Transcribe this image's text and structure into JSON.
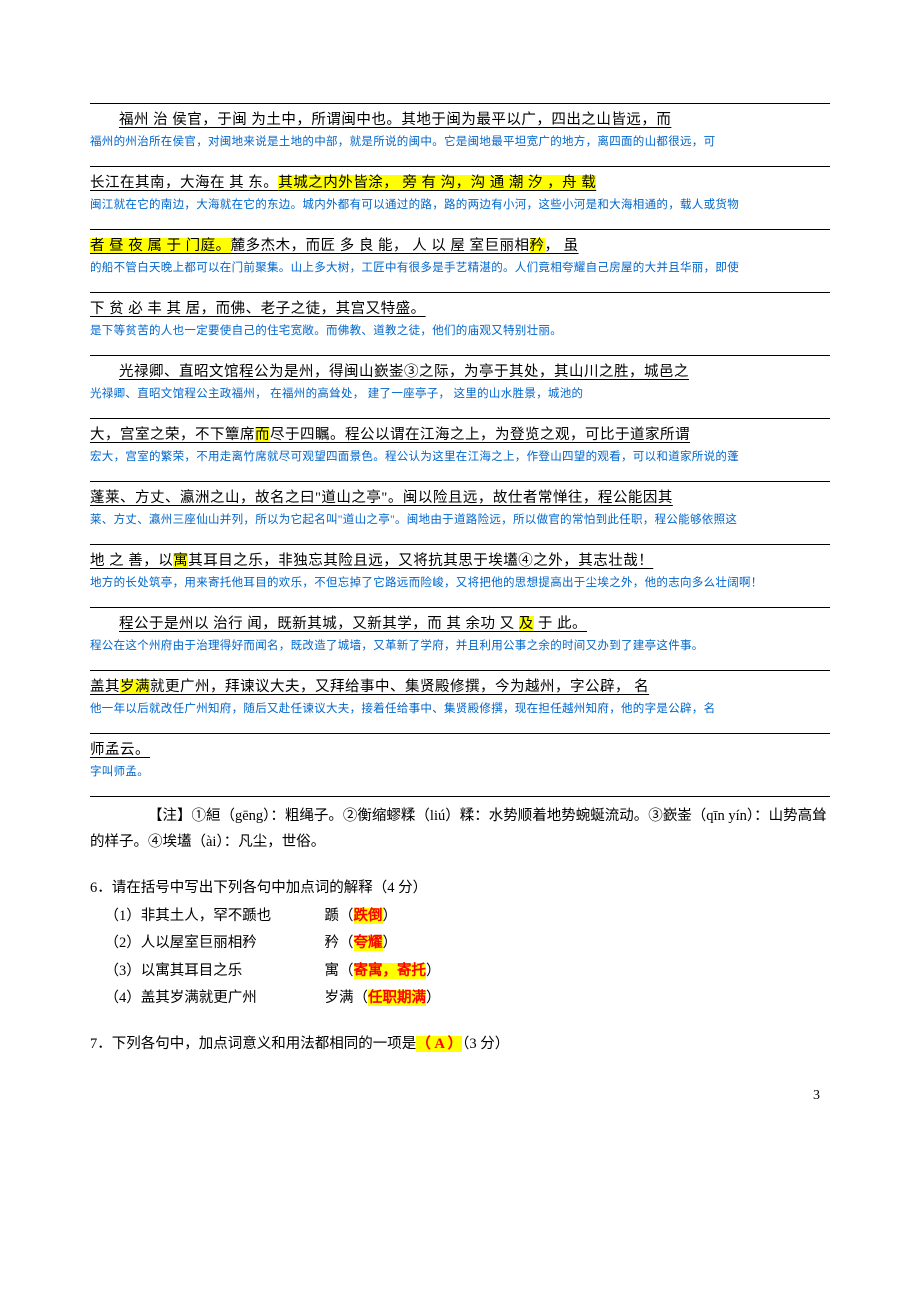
{
  "blocks": [
    {
      "cn": "福州 治 侯官，于闽  为土中，所谓闽中也。其地于闽为最平以广，四出之山皆远，而",
      "cn_indent": true,
      "tr": "福州的州治所在侯官，对闽地来说是土地的中部，就是所说的闽中。它是闽地最平坦宽广的地方，离四面的山都很远，可"
    },
    {
      "cn": "长江在其南，大海在 其 东。<span class='hl'>其城之内外皆涂，  旁 有  沟，沟 通      潮 汐 ，舟    载</span>",
      "tr": "闽江就在它的南边，大海就在它的东边。城内外都有可以通过的路，路的两边有小河，这些小河是和大海相通的，载人或货物"
    },
    {
      "cn": "<span class='hl'>者    昼 夜 属  于 门庭。</span>麓多杰木，而匠 多 良   能，  人  以    屋 室巨丽相<span class='hl'>矜</span>，   虽",
      "tr": "的船不管白天晚上都可以在门前聚集。山上多大树，工匠中有很多是手艺精湛的。人们竟相夸耀自己房屋的大并且华丽，即使"
    },
    {
      "cn": "下     贫    必 丰     其 居，而佛、老子之徒，其宫又特盛。",
      "tr": "是下等贫苦的人也一定要使自己的住宅宽敞。而佛教、道教之徒，他们的庙观又特别壮丽。"
    },
    {
      "cn": "光禄卿、直昭文馆程公为是州，得闽山嶔崟③之际，为亭于其处，其山川之胜，城邑之",
      "cn_indent": true,
      "tr": "光禄卿、直昭文馆程公主政福州，   在福州的高耸处，  建了一座亭子，   这里的山水胜景，城池的"
    },
    {
      "cn": "大，宫室之荣，不下簟席<span class='hl'>而</span>尽于四瞩。程公以谓在江海之上，为登览之观，可比于道家所谓",
      "tr": "宏大，宫室的繁荣，不用走离竹席就尽可观望四面景色。程公认为这里在江海之上，作登山四望的观看，可以和道家所说的蓬"
    },
    {
      "cn": "蓬莱、方丈、瀛洲之山，故名之曰\"道山之亭\"。闽以险且远，故仕者常惮往，程公能因其",
      "tr": "莱、方丈、瀛州三座仙山并列，所以为它起名叫\"道山之亭\"。闽地由于道路险远，所以做官的常怕到此任职，程公能够依照这"
    },
    {
      "cn": "地 之    善，以<span class='hl'>寓</span>其耳目之乐，非独忘其险且远，又将抗其思于埃壒④之外，其志壮哉！",
      "tr": "地方的长处筑亭，用来寄托他耳目的欢乐，不但忘掉了它路远而险峻，又将把他的思想提高出于尘埃之外，他的志向多么壮阔啊！"
    },
    {
      "cn": "程公于是州以 治行   闻，既新其城，又新其学，而      其    余功 又  <span class='hl'>及</span>  于 此。",
      "cn_indent": true,
      "tr": "程公在这个州府由于治理得好而闻名，既改造了城墙，又革新了学府，并且利用公事之余的时间又办到了建亭这件事。"
    },
    {
      "cn": "盖其<span class='hl'>岁满</span>就更广州，拜谏议大夫，又拜给事中、集贤殿修撰，今为越州，字公辟，    名",
      "tr": "他一年以后就改任广州知府，随后又赴任谏议大夫，接着任给事中、集贤殿修撰，现在担任越州知府，他的字是公辟，名"
    },
    {
      "cn": "师孟云。",
      "tr": "字叫师孟。"
    }
  ],
  "note": "【注】①絙（gēng）：粗绳子。②衡缩蟉糅（liú）糅：水势顺着地势蜿蜒流动。③嶔崟（qīn yín）：山势高耸的样子。④埃壒（ài）：凡尘，世俗。",
  "q6": {
    "stem": "6．请在括号中写出下列各句中加点词的解释（4 分）",
    "items": [
      {
        "text": "（1）非其土人，罕不踬也",
        "word": "踬（",
        "ans": "跌倒",
        "close": "）"
      },
      {
        "text": "（2）人以屋室巨丽相矜",
        "word": "矜（",
        "ans": "夸耀",
        "close": "）"
      },
      {
        "text": "（3）以寓其耳目之乐",
        "word": "寓（",
        "ans": "寄寓，寄托",
        "close": "）"
      },
      {
        "text": "（4）盖其岁满就更广州",
        "word": "岁满（",
        "ans": "任职期满",
        "close": "）"
      }
    ]
  },
  "q7": {
    "stem_pre": "7．下列各句中，加点词意义和用法都相同的一项是",
    "ans": "（  A  ）",
    "stem_post": "（3 分）"
  },
  "pagenum": "3",
  "colors": {
    "highlight": "#ffff00",
    "answer": "#ff0000",
    "translation": "#0066cc",
    "text": "#000000",
    "background": "#ffffff"
  }
}
